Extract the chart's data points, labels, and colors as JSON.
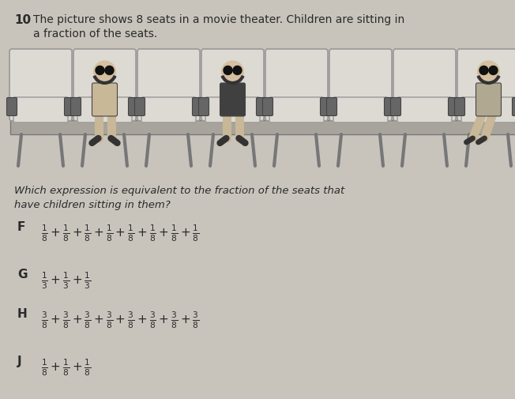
{
  "question_number": "10",
  "question_text": "The picture shows 8 seats in a movie theater. Children are sitting in\na fraction of the seats.",
  "sub_question": "Which expression is equivalent to the fraction of the seats that\nhave children sitting in them?",
  "options": [
    {
      "label": "F",
      "expression": "\\frac{1}{8} + \\frac{1}{8} + \\frac{1}{8} + \\frac{1}{8} + \\frac{1}{8} + \\frac{1}{8} + \\frac{1}{8} + \\frac{1}{8}"
    },
    {
      "label": "G",
      "expression": "\\frac{1}{3} + \\frac{1}{3} + \\frac{1}{3}"
    },
    {
      "label": "H",
      "expression": "\\frac{3}{8} + \\frac{3}{8} + \\frac{3}{8} + \\frac{3}{8} + \\frac{3}{8} + \\frac{3}{8} + \\frac{3}{8} + \\frac{3}{8}"
    },
    {
      "label": "J",
      "expression": "\\frac{1}{8} + \\frac{1}{8} + \\frac{1}{8}"
    }
  ],
  "bg_color": "#c8c4bc",
  "text_color": "#2a2a2a",
  "fig_width": 6.52,
  "fig_height": 5.05,
  "dpi": 100,
  "num_seats": 8,
  "children_seats": [
    1,
    3,
    7
  ],
  "seat_color_light": "#dddad4",
  "seat_color_mid": "#b8b4ac",
  "seat_outline": "#888888",
  "bench_color": "#a8a49c"
}
